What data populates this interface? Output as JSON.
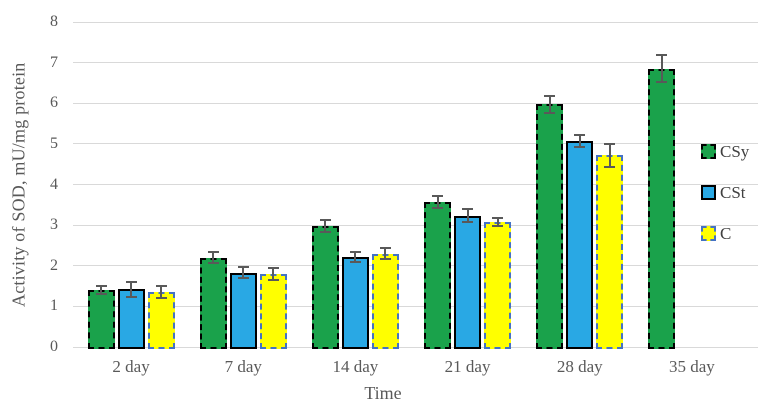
{
  "chart_data": {
    "type": "bar",
    "title": "",
    "xlabel": "Time",
    "ylabel": "Activity of SOD, mU/mg protein",
    "ylim": [
      0,
      8
    ],
    "yticks": [
      0,
      1,
      2,
      3,
      4,
      5,
      6,
      7,
      8
    ],
    "grid": true,
    "legend_position": "right",
    "categories": [
      "2 day",
      "7 day",
      "14 day",
      "21 day",
      "28 day",
      "35 day"
    ],
    "series": [
      {
        "name": "CSy",
        "fill": "#1aa24b",
        "border_color": "#000000",
        "border_style": "dashed",
        "values": [
          1.4,
          2.2,
          2.97,
          3.57,
          5.97,
          6.85
        ],
        "errors": [
          0.1,
          0.13,
          0.15,
          0.15,
          0.2,
          0.33
        ]
      },
      {
        "name": "CSt",
        "fill": "#29a8e4",
        "border_color": "#000000",
        "border_style": "solid",
        "values": [
          1.42,
          1.83,
          2.22,
          3.23,
          5.08,
          null
        ],
        "errors": [
          0.18,
          0.13,
          0.13,
          0.16,
          0.15,
          null
        ]
      },
      {
        "name": "C",
        "fill": "#ffff00",
        "border_color": "#4472c4",
        "border_style": "dashed",
        "values": [
          1.35,
          1.8,
          2.3,
          3.08,
          4.72,
          null
        ],
        "errors": [
          0.15,
          0.15,
          0.13,
          0.1,
          0.28,
          null
        ]
      }
    ],
    "colors": {
      "grid": "#d9d9d9",
      "axis_text": "#595959",
      "error_bar": "#595959",
      "legend_text": "#404040",
      "background": "#ffffff"
    }
  }
}
